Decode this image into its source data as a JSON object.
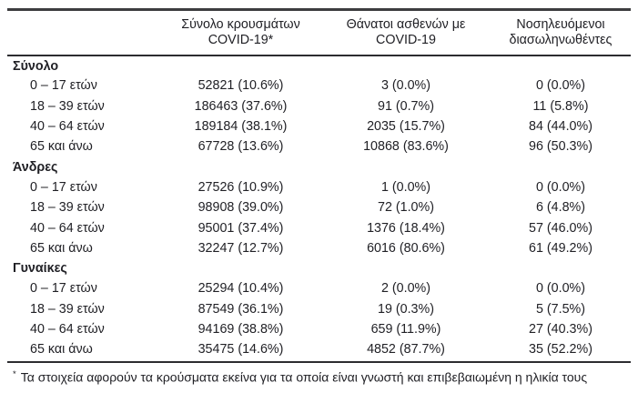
{
  "header": {
    "columns": [
      {
        "line1": "Σύνολο κρουσμάτων",
        "line2": "COVID-19*"
      },
      {
        "line1": "Θάνατοι ασθενών με",
        "line2": "COVID-19"
      },
      {
        "line1": "Νοσηλευόμενοι",
        "line2": "διασωληνωθέντες"
      }
    ]
  },
  "sections": [
    {
      "label": "Σύνολο",
      "rows": [
        {
          "label": "0 – 17 ετών",
          "cases": "52821 (10.6%)",
          "deaths": "3 (0.0%)",
          "intubated": "0 (0.0%)"
        },
        {
          "label": "18 – 39 ετών",
          "cases": "186463 (37.6%)",
          "deaths": "91 (0.7%)",
          "intubated": "11 (5.8%)"
        },
        {
          "label": "40 – 64 ετών",
          "cases": "189184 (38.1%)",
          "deaths": "2035 (15.7%)",
          "intubated": "84 (44.0%)"
        },
        {
          "label": "65 και άνω",
          "cases": "67728 (13.6%)",
          "deaths": "10868 (83.6%)",
          "intubated": "96 (50.3%)"
        }
      ]
    },
    {
      "label": "Άνδρες",
      "rows": [
        {
          "label": "0 – 17 ετών",
          "cases": "27526 (10.9%)",
          "deaths": "1 (0.0%)",
          "intubated": "0 (0.0%)"
        },
        {
          "label": "18 – 39 ετών",
          "cases": "98908 (39.0%)",
          "deaths": "72 (1.0%)",
          "intubated": "6 (4.8%)"
        },
        {
          "label": "40 – 64 ετών",
          "cases": "95001 (37.4%)",
          "deaths": "1376 (18.4%)",
          "intubated": "57 (46.0%)"
        },
        {
          "label": "65 και άνω",
          "cases": "32247 (12.7%)",
          "deaths": "6016 (80.6%)",
          "intubated": "61 (49.2%)"
        }
      ]
    },
    {
      "label": "Γυναίκες",
      "rows": [
        {
          "label": "0 – 17 ετών",
          "cases": "25294 (10.4%)",
          "deaths": "2 (0.0%)",
          "intubated": "0 (0.0%)"
        },
        {
          "label": "18 – 39 ετών",
          "cases": "87549 (36.1%)",
          "deaths": "19 (0.3%)",
          "intubated": "5 (7.5%)"
        },
        {
          "label": "40 – 64 ετών",
          "cases": "94169 (38.8%)",
          "deaths": "659 (11.9%)",
          "intubated": "27 (40.3%)"
        },
        {
          "label": "65 και άνω",
          "cases": "35475 (14.6%)",
          "deaths": "4852 (87.7%)",
          "intubated": "35 (52.2%)"
        }
      ]
    }
  ],
  "footnote": {
    "marker": "*",
    "text": "Τα στοιχεία αφορούν τα κρούσματα εκείνα για τα οποία είναι γνωστή και επιβεβαιωμένη η ηλικία τους"
  }
}
